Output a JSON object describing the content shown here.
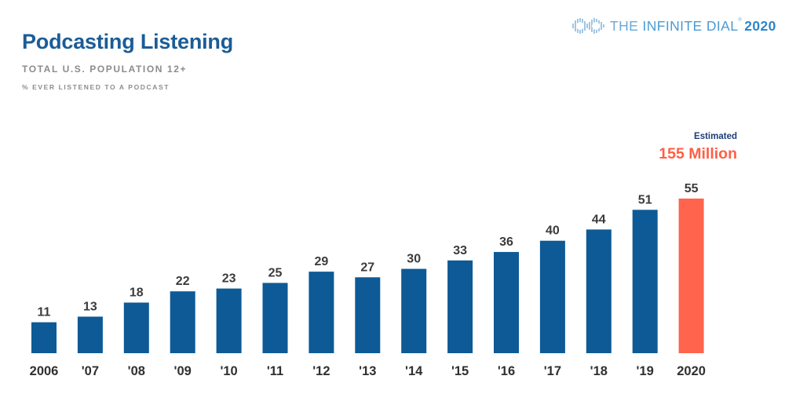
{
  "title": "Podcasting Listening",
  "subtitle": "TOTAL U.S. POPULATION 12+",
  "note": "% EVER LISTENED TO A PODCAST",
  "logo": {
    "prefix": "THE ",
    "name": "INFINITE DIAL",
    "mark": "®",
    "year": "2020",
    "icon": "infinity-icon"
  },
  "annotation": {
    "label": "Estimated",
    "value": "155 Million"
  },
  "colors": {
    "bar": "#0d5a96",
    "highlight": "#ff644c",
    "title": "#1b5c97",
    "value_label": "#3b3b3b",
    "tick_label": "#303030"
  },
  "chart_data": {
    "type": "bar",
    "categories": [
      "2006",
      "'07",
      "'08",
      "'09",
      "'10",
      "'11",
      "'12",
      "'13",
      "'14",
      "'15",
      "'16",
      "'17",
      "'18",
      "'19",
      "2020"
    ],
    "values": [
      11,
      13,
      18,
      22,
      23,
      25,
      29,
      27,
      30,
      33,
      36,
      40,
      44,
      51,
      55
    ],
    "highlight_index": 14,
    "title": "Podcasting Listening",
    "xlabel": "",
    "ylabel": "",
    "ylim": [
      0,
      55
    ],
    "grid": false,
    "legend": "none",
    "data_labels": true
  }
}
